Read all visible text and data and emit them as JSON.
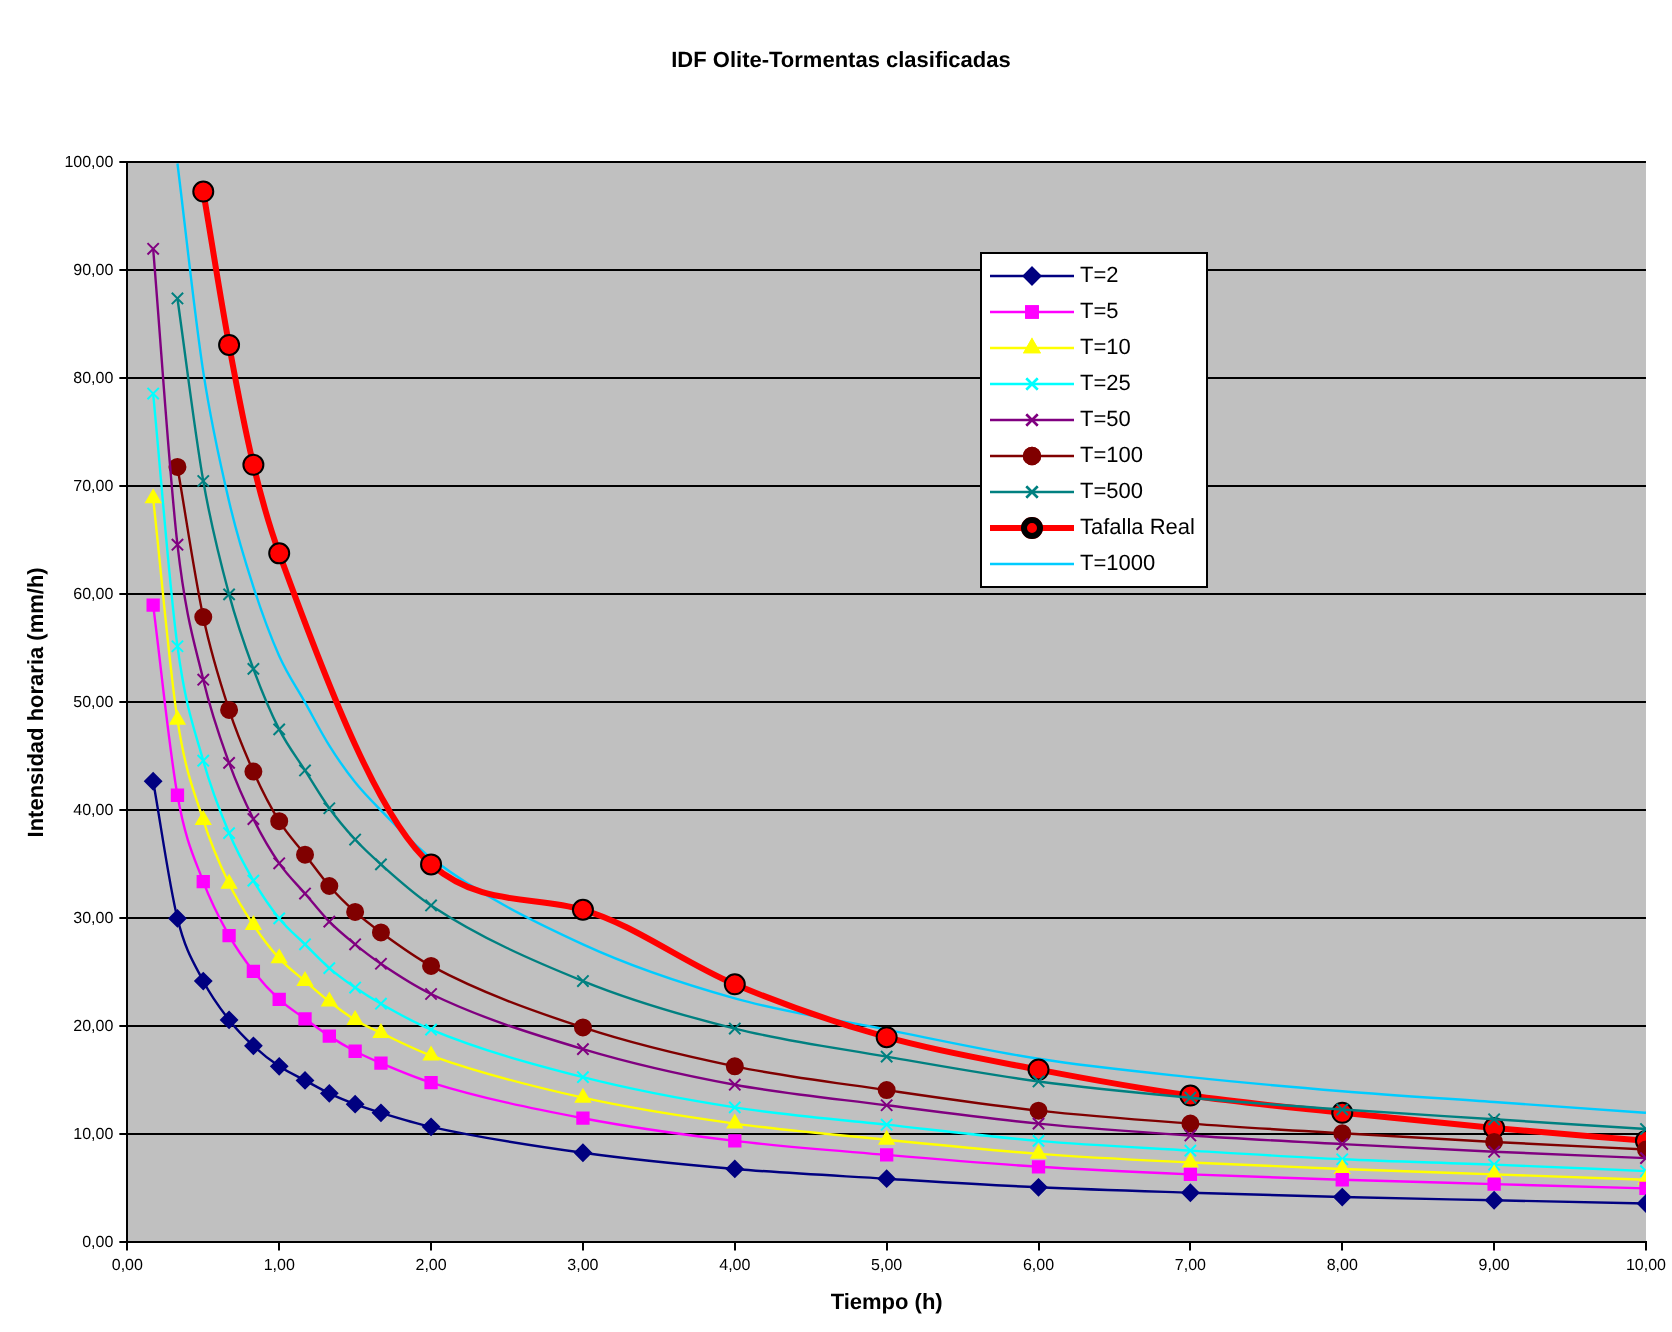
{
  "chart_data": {
    "type": "line",
    "title": "IDF Olite-Tormentas clasificadas",
    "xlabel": "Tiempo (h)",
    "ylabel": "Intensidad horaria (mm/h)",
    "x": [
      0.17,
      0.33,
      0.5,
      0.67,
      0.83,
      1,
      1.17,
      1.33,
      1.5,
      1.67,
      2,
      3,
      4,
      5,
      6,
      7,
      8,
      9,
      10
    ],
    "xlim": [
      0,
      10
    ],
    "ylim": [
      0,
      100
    ],
    "xticks": [
      {
        "value": 0,
        "label": "0,00"
      },
      {
        "value": 1,
        "label": "1,00"
      },
      {
        "value": 2,
        "label": "2,00"
      },
      {
        "value": 3,
        "label": "3,00"
      },
      {
        "value": 4,
        "label": "4,00"
      },
      {
        "value": 5,
        "label": "5,00"
      },
      {
        "value": 6,
        "label": "6,00"
      },
      {
        "value": 7,
        "label": "7,00"
      },
      {
        "value": 8,
        "label": "8,00"
      },
      {
        "value": 9,
        "label": "9,00"
      },
      {
        "value": 10,
        "label": "10,00"
      }
    ],
    "yticks": [
      {
        "value": 0,
        "label": "0,00"
      },
      {
        "value": 10,
        "label": "10,00"
      },
      {
        "value": 20,
        "label": "20,00"
      },
      {
        "value": 30,
        "label": "30,00"
      },
      {
        "value": 40,
        "label": "40,00"
      },
      {
        "value": 50,
        "label": "50,00"
      },
      {
        "value": 60,
        "label": "60,00"
      },
      {
        "value": 70,
        "label": "70,00"
      },
      {
        "value": 80,
        "label": "80,00"
      },
      {
        "value": 90,
        "label": "90,00"
      },
      {
        "value": 100,
        "label": "100,00"
      }
    ],
    "grid": "y",
    "legend": "top",
    "line_style": "solid",
    "series": [
      {
        "name": "T=2",
        "color": "#000080",
        "marker": "diamond",
        "values": [
          42.7,
          30,
          24.2,
          20.6,
          18.2,
          16.3,
          15,
          13.8,
          12.8,
          12,
          10.7,
          8.3,
          6.8,
          5.9,
          5.1,
          4.6,
          4.2,
          3.9,
          3.6
        ]
      },
      {
        "name": "T=5",
        "color": "#ff00ff",
        "marker": "square",
        "values": [
          59.0,
          41.4,
          33.4,
          28.4,
          25.1,
          22.5,
          20.7,
          19.1,
          17.7,
          16.6,
          14.8,
          11.5,
          9.4,
          8.1,
          7.0,
          6.3,
          5.8,
          5.4,
          5.0
        ]
      },
      {
        "name": "T=10",
        "color": "#ffff00",
        "marker": "triangle",
        "values": [
          68.9,
          48.4,
          39.1,
          33.2,
          29.4,
          26.3,
          24.2,
          22.3,
          20.6,
          19.4,
          17.3,
          13.4,
          11.0,
          9.5,
          8.2,
          7.4,
          6.8,
          6.3,
          5.8
        ]
      },
      {
        "name": "T=25",
        "color": "#00ffff",
        "marker": "cross",
        "values": [
          78.6,
          55.2,
          44.6,
          37.9,
          33.5,
          30.0,
          27.6,
          25.4,
          23.6,
          22.1,
          19.7,
          15.3,
          12.5,
          10.9,
          9.4,
          8.5,
          7.7,
          7.2,
          6.6
        ]
      },
      {
        "name": "T=50",
        "color": "#800080",
        "marker": "cross",
        "values": [
          92.0,
          64.6,
          52.1,
          44.4,
          39.2,
          35.1,
          32.3,
          29.7,
          27.6,
          25.8,
          23.0,
          17.9,
          14.6,
          12.7,
          11.0,
          9.9,
          9.1,
          8.4,
          7.8
        ]
      },
      {
        "name": "T=100",
        "color": "#800000",
        "marker": "circle",
        "values": [
          null,
          71.8,
          57.9,
          49.3,
          43.6,
          39.0,
          35.9,
          33.0,
          30.6,
          28.7,
          25.6,
          19.9,
          16.3,
          14.1,
          12.2,
          11.0,
          10.1,
          9.3,
          8.6
        ]
      },
      {
        "name": "T=500",
        "color": "#008080",
        "marker": "cross",
        "values": [
          null,
          87.4,
          70.5,
          60.0,
          53.1,
          47.5,
          43.7,
          40.2,
          37.3,
          35.0,
          31.2,
          24.2,
          19.8,
          17.2,
          14.9,
          13.4,
          12.3,
          11.4,
          10.5
        ]
      },
      {
        "name": "Tafalla Real",
        "color": "#ff0000",
        "marker": "circle",
        "x": [
          0.5,
          0.67,
          0.83,
          1,
          2,
          3,
          4,
          5,
          6,
          7,
          8,
          9,
          10
        ],
        "values": [
          97.3,
          83.1,
          72.0,
          63.8,
          35.0,
          30.8,
          23.9,
          19.0,
          16.0,
          13.6,
          12.0,
          10.6,
          9.4
        ]
      },
      {
        "name": "T=1000",
        "color": "#00ccff",
        "marker": "none",
        "values": [
          null,
          99.9,
          80.6,
          68.6,
          60.7,
          54.3,
          50.0,
          46.0,
          42.6,
          40.0,
          35.6,
          27.6,
          22.6,
          19.7,
          17.0,
          15.3,
          14.0,
          13.0,
          12.0
        ]
      }
    ]
  }
}
